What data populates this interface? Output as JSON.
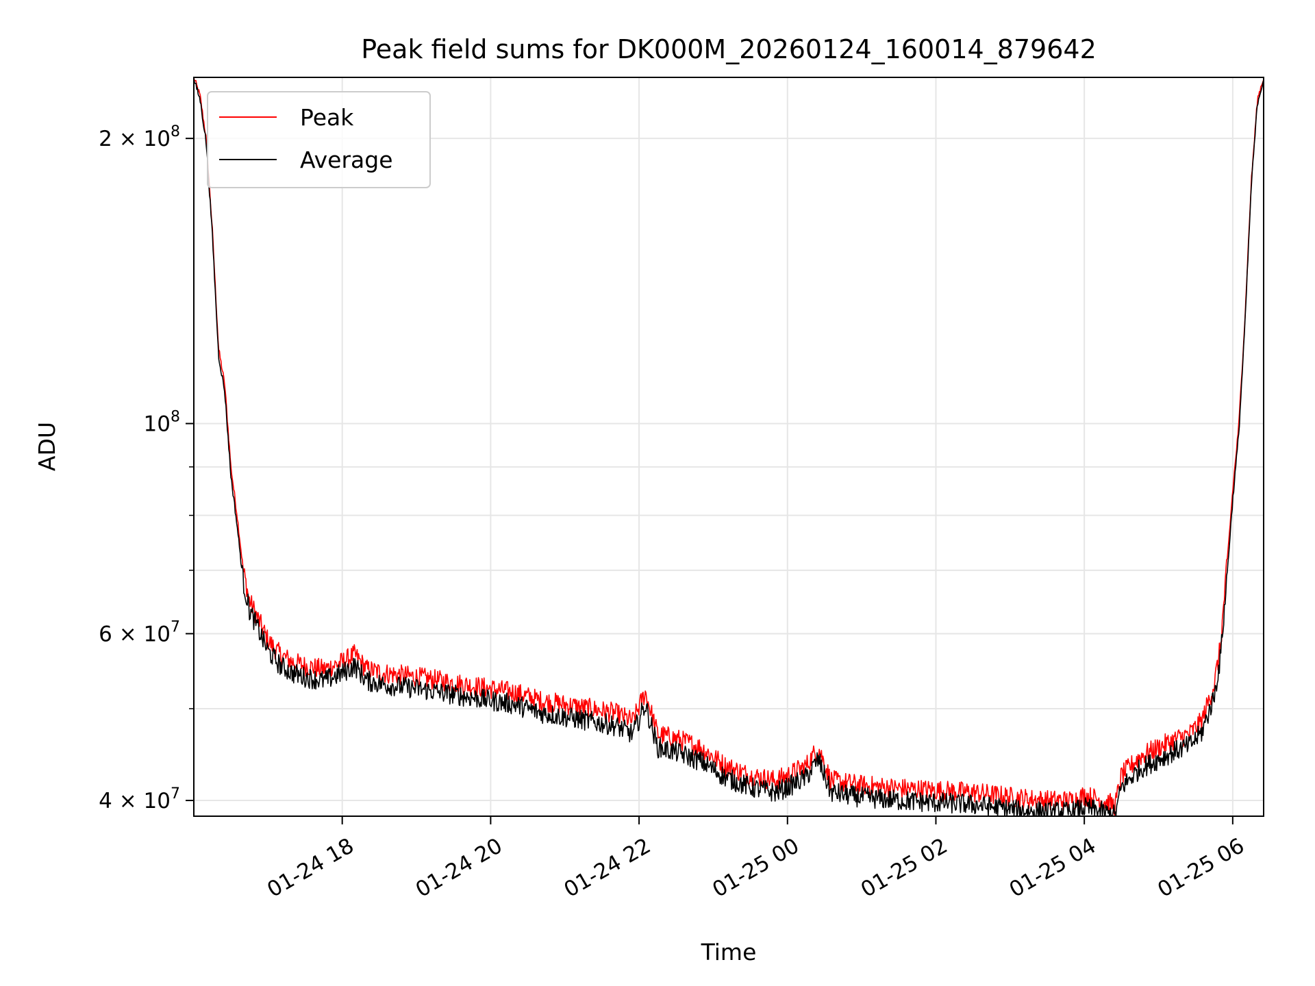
{
  "chart_data": {
    "type": "line",
    "title": "Peak field sums for DK000M_20260124_160014_879642",
    "xlabel": "Time",
    "ylabel": "ADU",
    "xlim": [
      "2026-01-24 16:00",
      "2026-01-25 06:25"
    ],
    "ylim": [
      38500000,
      232000000
    ],
    "yscale": "log",
    "grid": true,
    "legend_position": "upper-left",
    "x_ticks": [
      {
        "value": "2026-01-24 18:00",
        "label": "01-24 18"
      },
      {
        "value": "2026-01-24 20:00",
        "label": "01-24 20"
      },
      {
        "value": "2026-01-24 22:00",
        "label": "01-24 22"
      },
      {
        "value": "2026-01-25 00:00",
        "label": "01-25 00"
      },
      {
        "value": "2026-01-25 02:00",
        "label": "01-25 02"
      },
      {
        "value": "2026-01-25 04:00",
        "label": "01-25 04"
      },
      {
        "value": "2026-01-25 06:00",
        "label": "01-25 06"
      }
    ],
    "y_ticks": [
      {
        "value": 40000000,
        "mant": "4",
        "exp": "7"
      },
      {
        "value": 60000000,
        "mant": "6",
        "exp": "7"
      },
      {
        "value": 100000000,
        "mant": "",
        "exp": "8"
      },
      {
        "value": 200000000,
        "mant": "2",
        "exp": "8"
      }
    ],
    "y_minor_ticks": [
      50000000,
      70000000,
      80000000,
      90000000
    ],
    "series": [
      {
        "name": "Peak",
        "color": "#ff0000",
        "x": [
          "2026-01-24 16:00",
          "2026-01-24 16:05",
          "2026-01-24 16:10",
          "2026-01-24 16:15",
          "2026-01-24 16:20",
          "2026-01-24 16:25",
          "2026-01-24 16:30",
          "2026-01-24 16:35",
          "2026-01-24 16:40",
          "2026-01-24 16:45",
          "2026-01-24 16:50",
          "2026-01-24 17:00",
          "2026-01-24 17:10",
          "2026-01-24 17:20",
          "2026-01-24 17:30",
          "2026-01-24 17:45",
          "2026-01-24 18:00",
          "2026-01-24 18:10",
          "2026-01-24 18:20",
          "2026-01-24 18:35",
          "2026-01-24 19:00",
          "2026-01-24 19:20",
          "2026-01-24 19:40",
          "2026-01-24 20:00",
          "2026-01-24 20:20",
          "2026-01-24 20:40",
          "2026-01-24 21:00",
          "2026-01-24 21:20",
          "2026-01-24 21:40",
          "2026-01-24 21:55",
          "2026-01-24 22:05",
          "2026-01-24 22:15",
          "2026-01-24 22:30",
          "2026-01-24 22:50",
          "2026-01-24 23:10",
          "2026-01-24 23:30",
          "2026-01-24 23:50",
          "2026-01-25 00:00",
          "2026-01-25 00:15",
          "2026-01-25 00:25",
          "2026-01-25 00:35",
          "2026-01-25 01:00",
          "2026-01-25 01:30",
          "2026-01-25 02:00",
          "2026-01-25 02:30",
          "2026-01-25 02:50",
          "2026-01-25 03:10",
          "2026-01-25 03:30",
          "2026-01-25 03:50",
          "2026-01-25 04:00",
          "2026-01-25 04:15",
          "2026-01-25 04:25",
          "2026-01-25 04:30",
          "2026-01-25 04:45",
          "2026-01-25 05:00",
          "2026-01-25 05:15",
          "2026-01-25 05:25",
          "2026-01-25 05:35",
          "2026-01-25 05:45",
          "2026-01-25 05:50",
          "2026-01-25 05:55",
          "2026-01-25 06:00",
          "2026-01-25 06:05",
          "2026-01-25 06:10",
          "2026-01-25 06:15",
          "2026-01-25 06:20",
          "2026-01-25 06:25"
        ],
        "y": [
          232000000,
          222000000,
          200000000,
          160000000,
          120000000,
          110000000,
          90000000,
          80000000,
          70000000,
          65000000,
          63000000,
          59000000,
          57000000,
          56000000,
          55500000,
          55000000,
          56000000,
          57000000,
          55000000,
          54500000,
          54000000,
          53500000,
          53000000,
          52500000,
          52000000,
          51000000,
          50500000,
          50000000,
          49500000,
          48500000,
          52000000,
          47000000,
          46500000,
          45500000,
          43500000,
          42500000,
          42000000,
          42500000,
          43500000,
          45500000,
          42000000,
          41500000,
          41200000,
          41000000,
          40800000,
          40500000,
          40200000,
          40000000,
          40000000,
          40500000,
          40000000,
          39500000,
          42500000,
          44500000,
          45500000,
          46500000,
          47000000,
          48500000,
          53000000,
          58000000,
          70000000,
          85000000,
          100000000,
          130000000,
          180000000,
          220000000,
          232000000
        ]
      },
      {
        "name": "Average",
        "color": "#000000",
        "x": [
          "2026-01-24 16:00",
          "2026-01-24 16:05",
          "2026-01-24 16:10",
          "2026-01-24 16:15",
          "2026-01-24 16:20",
          "2026-01-24 16:25",
          "2026-01-24 16:30",
          "2026-01-24 16:35",
          "2026-01-24 16:40",
          "2026-01-24 16:45",
          "2026-01-24 16:50",
          "2026-01-24 17:00",
          "2026-01-24 17:10",
          "2026-01-24 17:20",
          "2026-01-24 17:30",
          "2026-01-24 17:45",
          "2026-01-24 18:00",
          "2026-01-24 18:10",
          "2026-01-24 18:20",
          "2026-01-24 18:35",
          "2026-01-24 19:00",
          "2026-01-24 19:20",
          "2026-01-24 19:40",
          "2026-01-24 20:00",
          "2026-01-24 20:20",
          "2026-01-24 20:40",
          "2026-01-24 21:00",
          "2026-01-24 21:20",
          "2026-01-24 21:40",
          "2026-01-24 21:55",
          "2026-01-24 22:05",
          "2026-01-24 22:15",
          "2026-01-24 22:30",
          "2026-01-24 22:50",
          "2026-01-24 23:10",
          "2026-01-24 23:30",
          "2026-01-24 23:50",
          "2026-01-25 00:00",
          "2026-01-25 00:15",
          "2026-01-25 00:25",
          "2026-01-25 00:35",
          "2026-01-25 01:00",
          "2026-01-25 01:30",
          "2026-01-25 02:00",
          "2026-01-25 02:30",
          "2026-01-25 02:50",
          "2026-01-25 03:10",
          "2026-01-25 03:30",
          "2026-01-25 03:50",
          "2026-01-25 04:00",
          "2026-01-25 04:15",
          "2026-01-25 04:25",
          "2026-01-25 04:30",
          "2026-01-25 04:45",
          "2026-01-25 05:00",
          "2026-01-25 05:15",
          "2026-01-25 05:25",
          "2026-01-25 05:35",
          "2026-01-25 05:45",
          "2026-01-25 05:50",
          "2026-01-25 05:55",
          "2026-01-25 06:00",
          "2026-01-25 06:05",
          "2026-01-25 06:10",
          "2026-01-25 06:15",
          "2026-01-25 06:20",
          "2026-01-25 06:25"
        ],
        "y": [
          231000000,
          220000000,
          198000000,
          158000000,
          118000000,
          108000000,
          88000000,
          78000000,
          68000000,
          63500000,
          61500000,
          57500000,
          55500000,
          54500000,
          54000000,
          53500000,
          54500000,
          55500000,
          53500000,
          53000000,
          52500000,
          52000000,
          51500000,
          51000000,
          50500000,
          49500000,
          49000000,
          48500000,
          48000000,
          47000000,
          50500000,
          45500000,
          45000000,
          44000000,
          42300000,
          41300000,
          40800000,
          41300000,
          42300000,
          44200000,
          40800000,
          40300000,
          40000000,
          39800000,
          39600000,
          39300000,
          39000000,
          38900000,
          38900000,
          39300000,
          38900000,
          38600000,
          41300000,
          43200000,
          44200000,
          45200000,
          45700000,
          47200000,
          51500000,
          56500000,
          68000000,
          83000000,
          98000000,
          128000000,
          178000000,
          218000000,
          231000000
        ]
      }
    ]
  }
}
